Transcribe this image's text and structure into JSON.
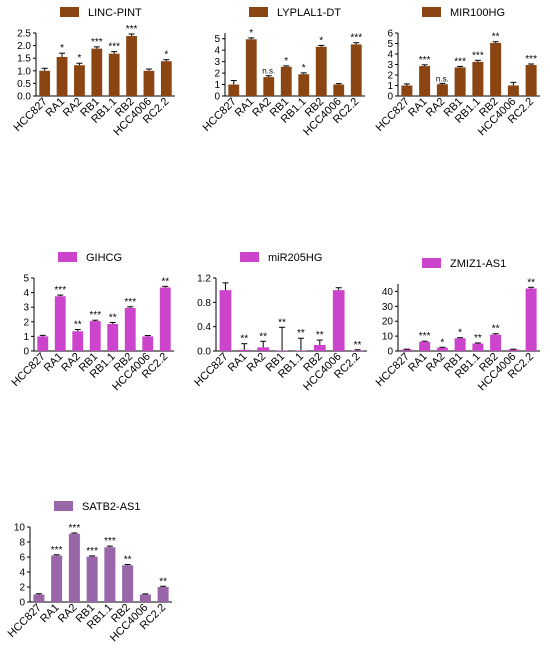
{
  "chart_data": [
    {
      "type": "bar",
      "legend": "LINC-PINT",
      "color": "#8B4513",
      "categories": [
        "HCC827",
        "RA1",
        "RA2",
        "RB1",
        "RB1.1",
        "RB2",
        "HCC4006",
        "RC2.2"
      ],
      "values": [
        1.0,
        1.55,
        1.22,
        1.88,
        1.68,
        2.38,
        1.0,
        1.38
      ],
      "errors": [
        0.1,
        0.15,
        0.08,
        0.07,
        0.08,
        0.08,
        0.07,
        0.06
      ],
      "significance": [
        "",
        "*",
        "*",
        "***",
        "***",
        "***",
        "",
        "*"
      ],
      "ylim": [
        0,
        2.5
      ],
      "yticks": [
        "0.0",
        "0.5",
        "1.0",
        "1.5",
        "2.0",
        "2.5"
      ]
    },
    {
      "type": "bar",
      "legend": "LYPLAL1-DT",
      "color": "#8B4513",
      "categories": [
        "HCC827",
        "RA1",
        "RA2",
        "RB1",
        "RB1.1",
        "RB2",
        "HCC4006",
        "RC2.2"
      ],
      "values": [
        1.0,
        4.95,
        1.65,
        2.55,
        1.9,
        4.3,
        1.0,
        4.5
      ],
      "errors": [
        0.35,
        0.12,
        0.12,
        0.08,
        0.12,
        0.12,
        0.08,
        0.15
      ],
      "significance": [
        "",
        "*",
        "n.s.",
        "*",
        "*",
        "*",
        "",
        "***"
      ],
      "ylim": [
        0,
        5.5
      ],
      "yticks": [
        "0",
        "1",
        "2",
        "3",
        "4",
        "5"
      ]
    },
    {
      "type": "bar",
      "legend": "MIR100HG",
      "color": "#8B4513",
      "categories": [
        "HCC827",
        "RA1",
        "RA2",
        "RB1",
        "RB1.1",
        "RB2",
        "HCC4006",
        "RC2.2"
      ],
      "values": [
        1.0,
        2.85,
        1.12,
        2.72,
        3.25,
        5.05,
        1.0,
        2.95
      ],
      "errors": [
        0.15,
        0.12,
        0.08,
        0.1,
        0.15,
        0.12,
        0.3,
        0.1
      ],
      "significance": [
        "",
        "***",
        "n.s.",
        "***",
        "***",
        "**",
        "",
        "***"
      ],
      "ylim": [
        0,
        6
      ],
      "yticks": [
        "0",
        "1",
        "2",
        "3",
        "4",
        "5",
        "6"
      ]
    },
    {
      "type": "bar",
      "legend": "GIHCG",
      "color": "#CC44CC",
      "categories": [
        "HCC827",
        "RA1",
        "RA2",
        "RB1",
        "RB1.1",
        "RB2",
        "HCC4006",
        "RC2.2"
      ],
      "values": [
        1.0,
        3.75,
        1.35,
        2.05,
        1.85,
        2.95,
        1.0,
        4.35
      ],
      "errors": [
        0.07,
        0.08,
        0.12,
        0.06,
        0.1,
        0.08,
        0.06,
        0.08
      ],
      "significance": [
        "",
        "***",
        "**",
        "***",
        "**",
        "***",
        "",
        "**"
      ],
      "ylim": [
        0,
        5
      ],
      "yticks": [
        "0",
        "1",
        "2",
        "3",
        "4",
        "5"
      ]
    },
    {
      "type": "bar",
      "legend": "miR205HG",
      "color": "#CC44CC",
      "categories": [
        "HCC827",
        "RA1",
        "RA2",
        "RB1",
        "RB1.1",
        "RB2",
        "HCC4006",
        "RC2.2"
      ],
      "values": [
        1.0,
        0.02,
        0.06,
        0.01,
        0.01,
        0.1,
        1.0,
        0.01
      ],
      "errors": [
        0.12,
        0.1,
        0.1,
        0.38,
        0.2,
        0.08,
        0.04,
        0.01
      ],
      "significance": [
        "",
        "**",
        "**",
        "**",
        "**",
        "**",
        "",
        "**"
      ],
      "ylim": [
        0,
        1.2
      ],
      "yticks": [
        "0.0",
        "0.4",
        "0.8",
        "1.2"
      ]
    },
    {
      "type": "bar",
      "legend": "ZMIZ1-AS1",
      "color": "#CC44CC",
      "categories": [
        "HCC827",
        "RA1",
        "RA2",
        "RB1",
        "RB1.1",
        "RB2",
        "HCC4006",
        "RC2.2"
      ],
      "values": [
        1.0,
        6.2,
        2.2,
        8.5,
        5.0,
        11.0,
        1.0,
        42.0
      ],
      "errors": [
        0.2,
        0.4,
        0.3,
        0.4,
        0.4,
        0.6,
        0.2,
        0.8
      ],
      "significance": [
        "",
        "***",
        "*",
        "*",
        "**",
        "**",
        "",
        "**"
      ],
      "ylim": [
        0,
        45
      ],
      "yticks": [
        "0",
        "10",
        "20",
        "30",
        "40"
      ]
    },
    {
      "type": "bar",
      "legend": "SATB2-AS1",
      "color": "#9966AA",
      "categories": [
        "HCC827",
        "RA1",
        "RA2",
        "RB1",
        "RB1.1",
        "RB2",
        "HCC4006",
        "RC2.2"
      ],
      "values": [
        1.0,
        6.2,
        9.1,
        6.05,
        7.3,
        4.9,
        1.0,
        2.0
      ],
      "errors": [
        0.1,
        0.1,
        0.1,
        0.1,
        0.15,
        0.1,
        0.08,
        0.1
      ],
      "significance": [
        "",
        "***",
        "***",
        "***",
        "***",
        "**",
        "",
        "**"
      ],
      "ylim": [
        0,
        10
      ],
      "yticks": [
        "0",
        "2",
        "4",
        "6",
        "8",
        "10"
      ]
    }
  ]
}
